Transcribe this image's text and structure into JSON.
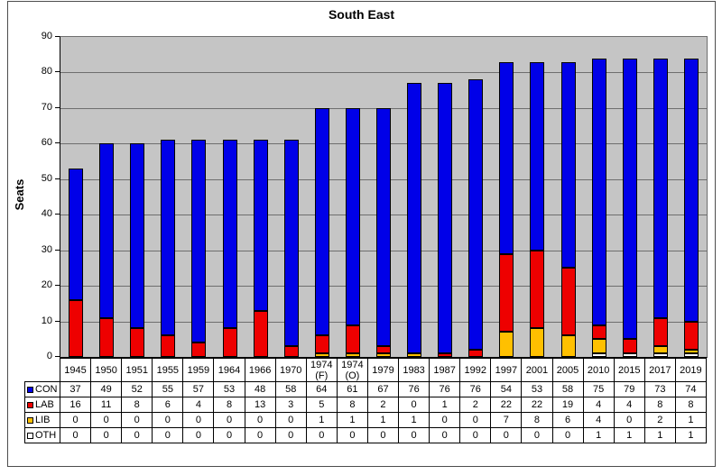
{
  "chart_data": {
    "type": "bar",
    "stacked": true,
    "title": "South East",
    "ylabel": "Seats",
    "xlabel": "",
    "ylim": [
      0,
      90
    ],
    "yticks": [
      0,
      10,
      20,
      30,
      40,
      50,
      60,
      70,
      80,
      90
    ],
    "grid": true,
    "legend_position": "table-left-column",
    "colors": {
      "plot_bg": "#C5C5C5",
      "gridline": "#6E6E6E",
      "axis": "#000000",
      "bar_border": "#000000"
    },
    "categories": [
      "1945",
      "1950",
      "1951",
      "1955",
      "1959",
      "1964",
      "1966",
      "1970",
      "1974 (F)",
      "1974 (O)",
      "1979",
      "1983",
      "1987",
      "1992",
      "1997",
      "2001",
      "2005",
      "2010",
      "2015",
      "2017",
      "2019"
    ],
    "series": [
      {
        "name": "CON",
        "color": "#0000E8",
        "values": [
          37,
          49,
          52,
          55,
          57,
          53,
          48,
          58,
          64,
          61,
          67,
          76,
          76,
          76,
          54,
          53,
          58,
          75,
          79,
          73,
          74
        ]
      },
      {
        "name": "LAB",
        "color": "#EE0000",
        "values": [
          16,
          11,
          8,
          6,
          4,
          8,
          13,
          3,
          5,
          8,
          2,
          0,
          1,
          2,
          22,
          22,
          19,
          4,
          4,
          8,
          8
        ]
      },
      {
        "name": "LIB",
        "color": "#FFC000",
        "values": [
          0,
          0,
          0,
          0,
          0,
          0,
          0,
          0,
          1,
          1,
          1,
          1,
          0,
          0,
          7,
          8,
          6,
          4,
          0,
          2,
          1
        ]
      },
      {
        "name": "OTH",
        "color": "#FFFFFF",
        "values": [
          0,
          0,
          0,
          0,
          0,
          0,
          0,
          0,
          0,
          0,
          0,
          0,
          0,
          0,
          0,
          0,
          0,
          1,
          1,
          1,
          1
        ]
      }
    ],
    "stack_order_bottom_to_top": [
      "OTH",
      "LIB",
      "LAB",
      "CON"
    ]
  }
}
